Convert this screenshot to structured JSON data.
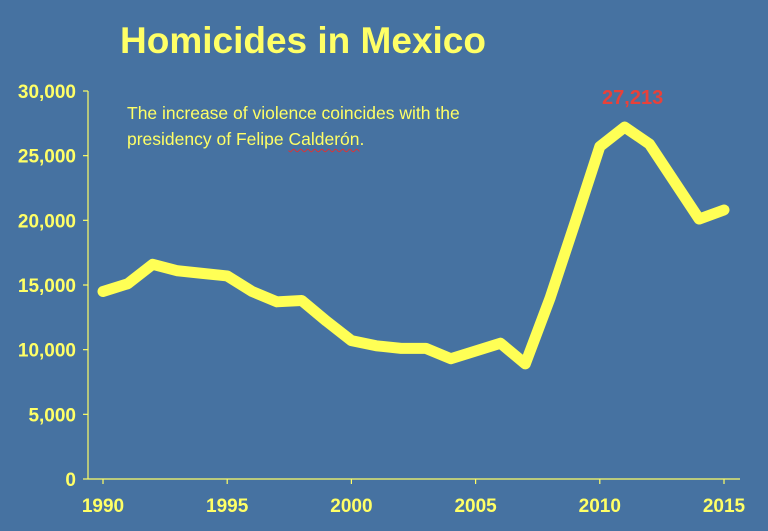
{
  "chart_data": {
    "type": "line",
    "title": "Homicides in Mexico",
    "annotation": {
      "line1": "The increase of violence coincides with the",
      "line2_before": "presidency of Felipe ",
      "line2_name": "Calderón",
      "line2_after": "."
    },
    "peak_label": {
      "year": 2011,
      "text": "27,213",
      "color": "#e8413a"
    },
    "x": [
      1990,
      1991,
      1992,
      1993,
      1994,
      1995,
      1996,
      1997,
      1998,
      1999,
      2000,
      2001,
      2002,
      2003,
      2004,
      2005,
      2006,
      2007,
      2008,
      2009,
      2010,
      2011,
      2012,
      2013,
      2014,
      2015
    ],
    "series": [
      {
        "values": [
          14500,
          15100,
          16600,
          16100,
          15900,
          15700,
          14500,
          13700,
          13800,
          12200,
          10700,
          10300,
          10100,
          10100,
          9300,
          9900,
          10500,
          8900,
          14000,
          19800,
          25700,
          27213,
          25900,
          23000,
          20100,
          20800
        ],
        "color": "#ffff55"
      }
    ],
    "xlim": [
      1990,
      2015
    ],
    "ylim": [
      0,
      30000
    ],
    "x_ticks": [
      "1990",
      "1995",
      "2000",
      "2005",
      "2010",
      "2015"
    ],
    "y_ticks": [
      "0",
      "5,000",
      "10,000",
      "15,000",
      "20,000",
      "25,000",
      "30,000"
    ],
    "grid": false,
    "colors": {
      "background": "#4672a1",
      "text": "#ffff66",
      "axis": "#ffff66"
    }
  }
}
